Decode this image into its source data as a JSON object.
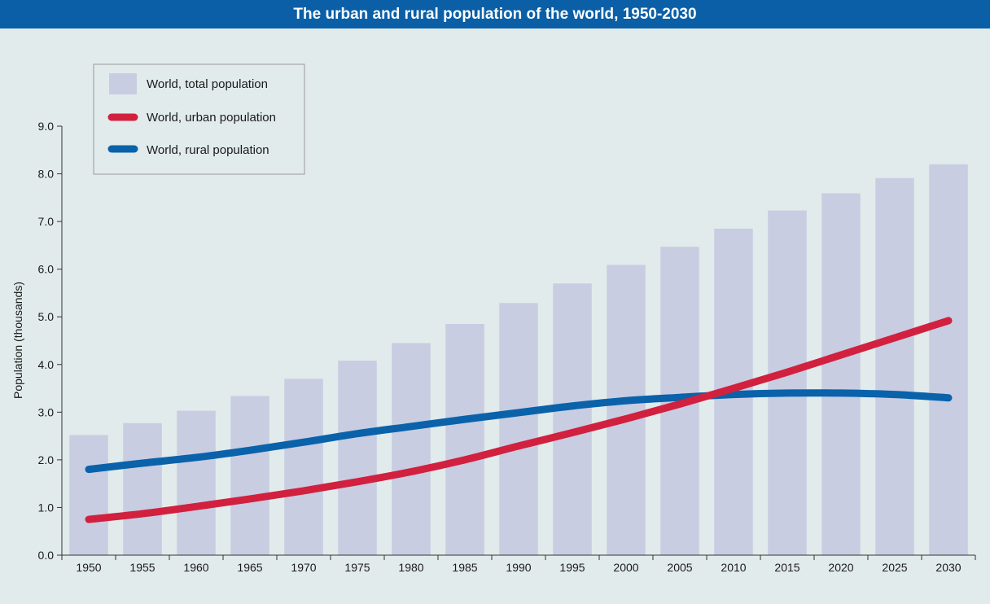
{
  "header": {
    "title": "The urban and rural population of the world, 1950-2030"
  },
  "colors": {
    "header_bg": "#0a5fa6",
    "background": "#e2ebeb",
    "bars": "#c8cde2",
    "urban": "#d2203f",
    "rural": "#0a62aa"
  },
  "chart_data": {
    "type": "bar",
    "title": "The urban and rural population of the world, 1950-2030",
    "xlabel": "",
    "ylabel": "Population (thousands)",
    "ylim": [
      0,
      9
    ],
    "yticks": [
      "0.0",
      "1.0",
      "2.0",
      "3.0",
      "4.0",
      "5.0",
      "6.0",
      "7.0",
      "8.0",
      "9.0"
    ],
    "categories": [
      "1950",
      "1955",
      "1960",
      "1965",
      "1970",
      "1975",
      "1980",
      "1985",
      "1990",
      "1995",
      "2000",
      "2005",
      "2010",
      "2015",
      "2020",
      "2025",
      "2030"
    ],
    "legend_position": "top-left",
    "grid": false,
    "series": [
      {
        "name": "World, total population",
        "type": "bar",
        "values": [
          2.52,
          2.77,
          3.03,
          3.34,
          3.7,
          4.08,
          4.45,
          4.85,
          5.29,
          5.7,
          6.09,
          6.47,
          6.85,
          7.23,
          7.59,
          7.91,
          8.2
        ]
      },
      {
        "name": "World, urban population",
        "type": "line",
        "values": [
          0.75,
          0.87,
          1.02,
          1.18,
          1.35,
          1.54,
          1.75,
          2.0,
          2.29,
          2.57,
          2.86,
          3.17,
          3.5,
          3.84,
          4.2,
          4.56,
          4.92
        ]
      },
      {
        "name": "World, rural population",
        "type": "line",
        "values": [
          1.8,
          1.93,
          2.05,
          2.2,
          2.37,
          2.55,
          2.7,
          2.85,
          2.99,
          3.13,
          3.24,
          3.31,
          3.37,
          3.4,
          3.4,
          3.37,
          3.3
        ]
      }
    ]
  }
}
